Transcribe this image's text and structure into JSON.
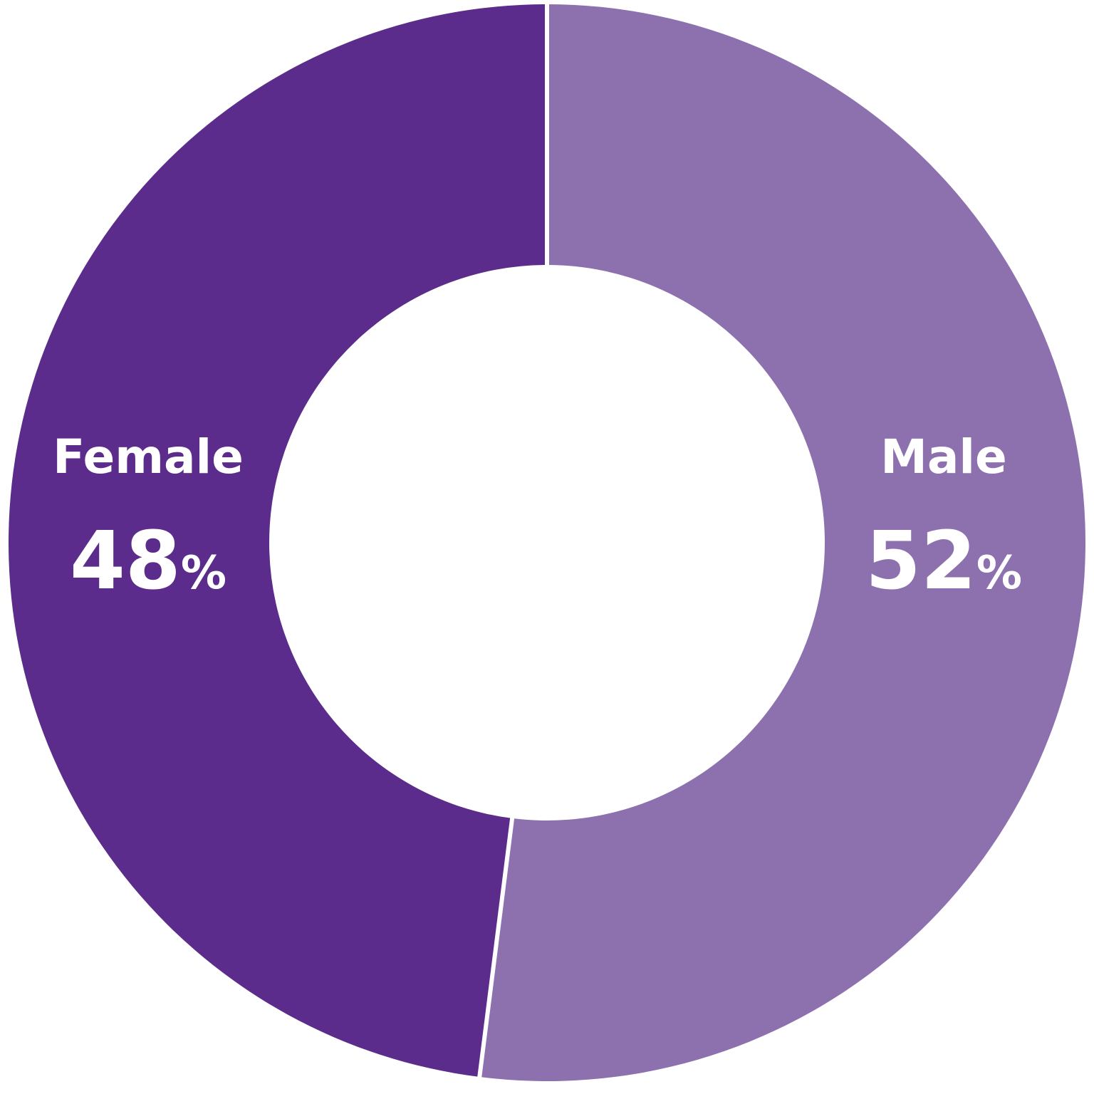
{
  "chart_data": {
    "type": "pie",
    "donut": true,
    "slices": [
      {
        "label": "Male",
        "value": 52,
        "value_text": "52",
        "unit": "%",
        "color": "#8c71ae"
      },
      {
        "label": "Female",
        "value": 48,
        "value_text": "48",
        "unit": "%",
        "color": "#5b2c8b"
      }
    ],
    "start": "top",
    "direction": "clockwise",
    "separator_color": "#ffffff"
  }
}
